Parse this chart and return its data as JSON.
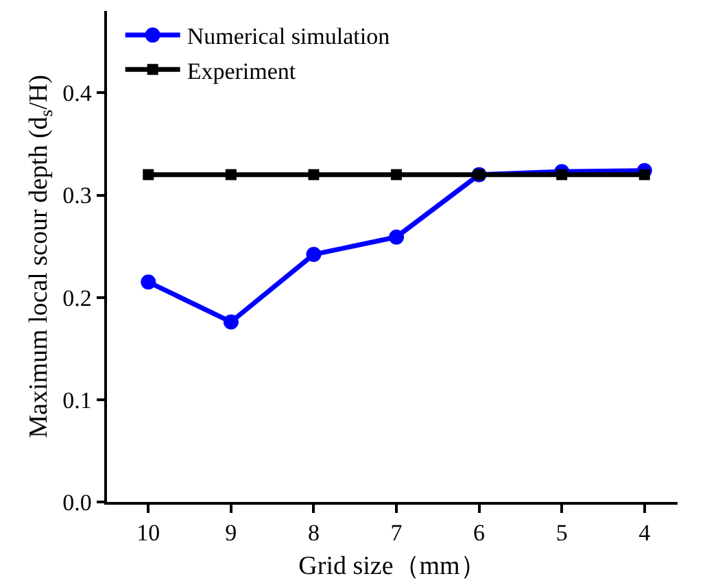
{
  "chart_data": {
    "type": "line",
    "xlabel": "Grid size（mm）",
    "ylabel": "Maximum local scour depth (d$_{s}$/H)",
    "x": [
      10,
      9,
      8,
      7,
      6,
      5,
      4
    ],
    "series": [
      {
        "name": "Numerical simulation",
        "color": "#0000ff",
        "marker": "circle",
        "values": [
          0.215,
          0.176,
          0.242,
          0.259,
          0.32,
          0.323,
          0.324
        ]
      },
      {
        "name": "Experiment",
        "color": "#000000",
        "marker": "square",
        "values": [
          0.32,
          0.32,
          0.32,
          0.32,
          0.32,
          0.32,
          0.32
        ]
      }
    ],
    "xlim": [
      10.5,
      3.6
    ],
    "xticks": [
      10,
      9,
      8,
      7,
      6,
      5,
      4
    ],
    "ylim": [
      0,
      0.48
    ],
    "yticks": [
      {
        "value": 0,
        "label": "0.0"
      },
      0.1,
      0.2,
      0.3,
      0.4
    ],
    "legend": "top left",
    "line_style": "solid"
  }
}
